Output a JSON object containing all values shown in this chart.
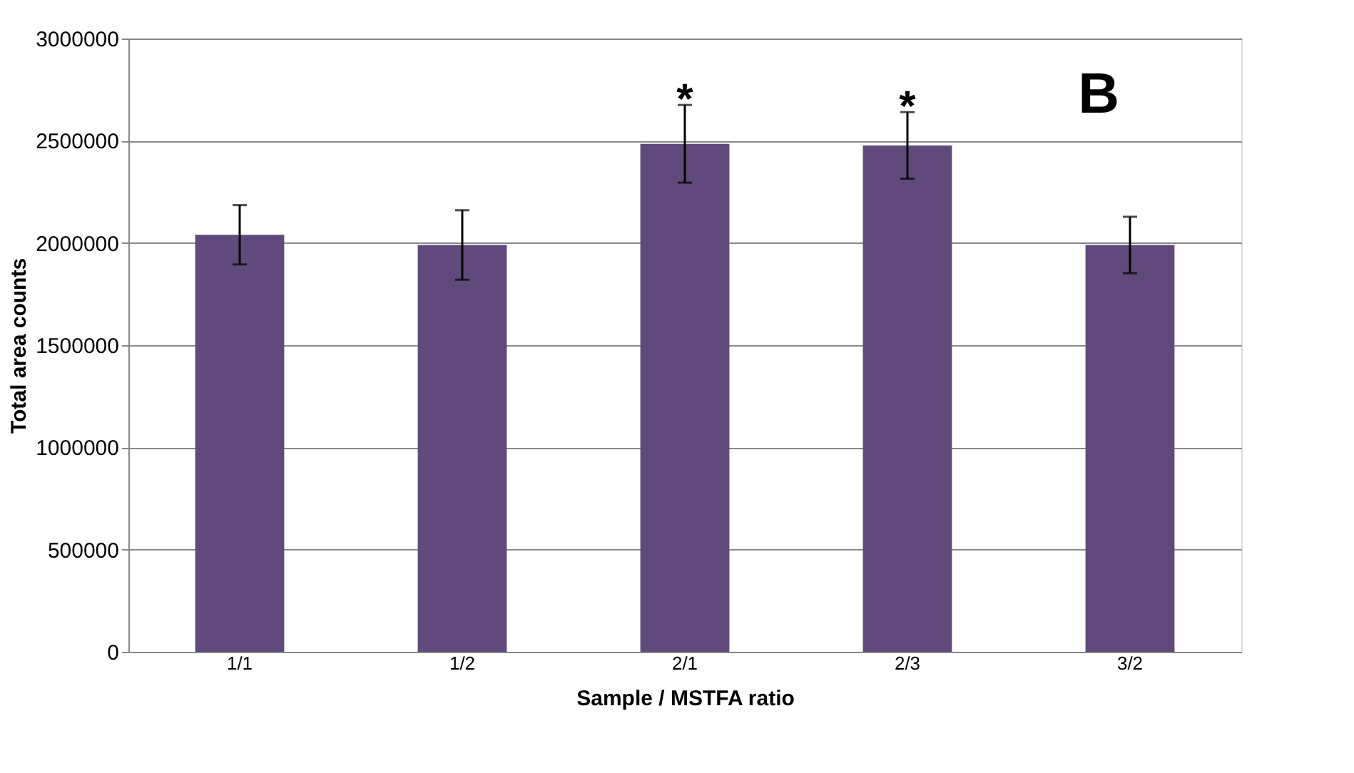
{
  "chart_data": {
    "type": "bar",
    "xlabel": "Sample / MSTFA ratio",
    "ylabel": "Total area counts",
    "categories": [
      "1/1",
      "1/2",
      "2/1",
      "2/3",
      "3/2"
    ],
    "values": [
      2040000,
      1990000,
      2485000,
      2477000,
      1990000
    ],
    "errors": [
      145000,
      170000,
      190000,
      163000,
      138000
    ],
    "color": "#604a7b",
    "ylim": [
      0,
      3000000
    ],
    "yticks": [
      0,
      500000,
      1000000,
      1500000,
      2000000,
      2500000,
      3000000
    ],
    "grid": "y",
    "annotations": [
      {
        "text": "*",
        "x": "2/1",
        "y": 2675000
      },
      {
        "text": "*",
        "x": "2/3",
        "y": 2640000
      },
      "B"
    ]
  }
}
